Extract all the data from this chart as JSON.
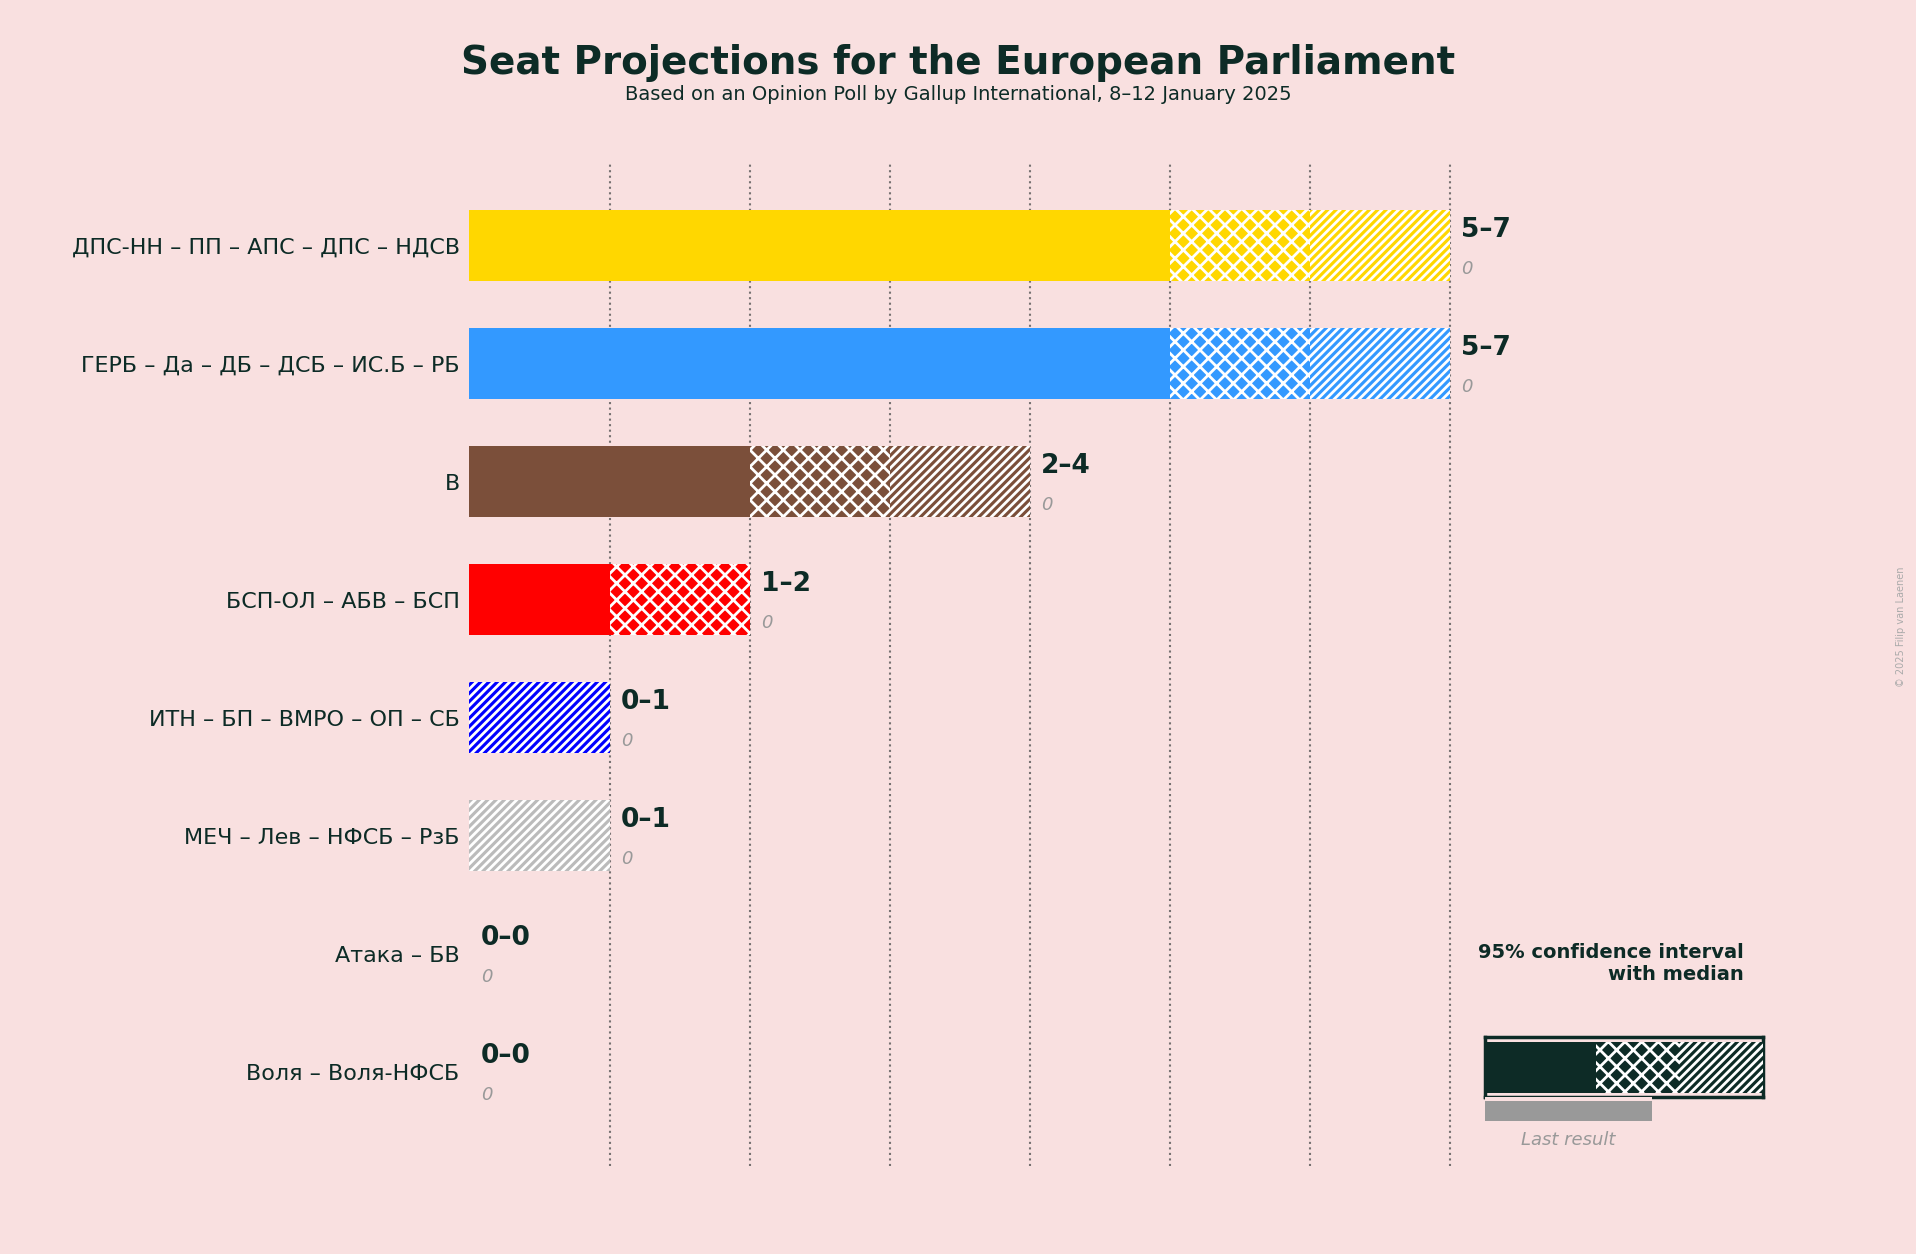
{
  "title": "Seat Projections for the European Parliament",
  "subtitle": "Based on an Opinion Poll by Gallup International, 8–12 January 2025",
  "copyright": "© 2025 Filip van Laenen",
  "background_color": "#f9e0e0",
  "parties": [
    {
      "name": "ДПС-НН – ПП – АПС – ДПС – НДСВ",
      "color": "#FFD700",
      "median": 5,
      "ci_low": 5,
      "ci_high": 7,
      "last": 0,
      "label": "5–7"
    },
    {
      "name": "ГЕРБ – Да – ДБ – ДСБ – ИС.Б – РБ",
      "color": "#3399FF",
      "median": 5,
      "ci_low": 5,
      "ci_high": 7,
      "last": 0,
      "label": "5–7"
    },
    {
      "name": "В",
      "color": "#7B4F3A",
      "median": 2,
      "ci_low": 2,
      "ci_high": 4,
      "last": 0,
      "label": "2–4"
    },
    {
      "name": "БСП-ОЛ – АБВ – БСП",
      "color": "#FF0000",
      "median": 1,
      "ci_low": 1,
      "ci_high": 2,
      "last": 0,
      "label": "1–2"
    },
    {
      "name": "ИТН – БП – ВМРО – ОП – СБ",
      "color": "#0000FF",
      "median": 0,
      "ci_low": 0,
      "ci_high": 1,
      "last": 0,
      "label": "0–1"
    },
    {
      "name": "МЕЧ – Лев – НФСБ – РзБ",
      "color": "#BBBBBB",
      "median": 0,
      "ci_low": 0,
      "ci_high": 1,
      "last": 0,
      "label": "0–1"
    },
    {
      "name": "Атака – БВ",
      "color": "#888888",
      "median": 0,
      "ci_low": 0,
      "ci_high": 0,
      "last": 0,
      "label": "0–0"
    },
    {
      "name": "Воля – Воля-НФСБ",
      "color": "#888888",
      "median": 0,
      "ci_low": 0,
      "ci_high": 0,
      "last": 0,
      "label": "0–0"
    }
  ],
  "xlim_max": 8.0,
  "dotted_lines": [
    1,
    2,
    3,
    4,
    5,
    6,
    7
  ],
  "dark_green": "#0d2b26",
  "gray_text": "#999999",
  "bar_height": 0.6,
  "label_fontsize": 19,
  "sublabel_fontsize": 13,
  "ytick_fontsize": 16,
  "title_fontsize": 28,
  "subtitle_fontsize": 14
}
